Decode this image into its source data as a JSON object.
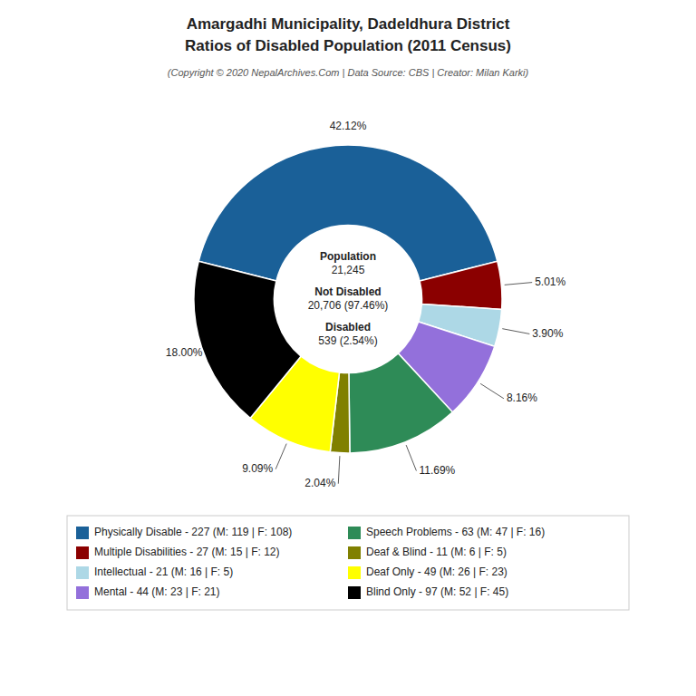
{
  "chart_data": {
    "type": "pie",
    "title": [
      "Amargadhi Municipality, Dadeldhura District",
      "Ratios of Disabled Population (2011 Census)"
    ],
    "subtitle": "(Copyright © 2020 NepalArchives.Com | Data Source: CBS | Creator: Milan Karki)",
    "categories": [
      "Physically Disable - 227 (M: 119 | F: 108)",
      "Multiple Disabilities - 27 (M: 15 | F: 12)",
      "Intellectual - 21 (M: 16 | F: 5)",
      "Mental - 44 (M: 23 | F: 21)",
      "Speech Problems - 63 (M: 47 | F: 16)",
      "Deaf & Blind - 11 (M: 6 | F: 5)",
      "Deaf Only - 49 (M: 26 | F: 23)",
      "Blind Only - 97 (M: 52 | F: 45)"
    ],
    "values": [
      42.12,
      5.01,
      3.9,
      8.16,
      11.69,
      2.04,
      9.09,
      18.0
    ],
    "value_labels": [
      "42.12%",
      "5.01%",
      "3.90%",
      "8.16%",
      "11.69%",
      "2.04%",
      "9.09%",
      "18.00%"
    ],
    "colors": [
      "#1a6098",
      "#8b0000",
      "#add8e6",
      "#9370db",
      "#2e8b57",
      "#808000",
      "#ffff00",
      "#000000"
    ],
    "data_labels": true,
    "legend": "bottom",
    "annotations": [
      [
        "Population",
        "21,245"
      ],
      [
        "Not Disabled",
        "20,706 (97.46%)"
      ],
      [
        "Disabled",
        "539 (2.54%)"
      ]
    ]
  }
}
